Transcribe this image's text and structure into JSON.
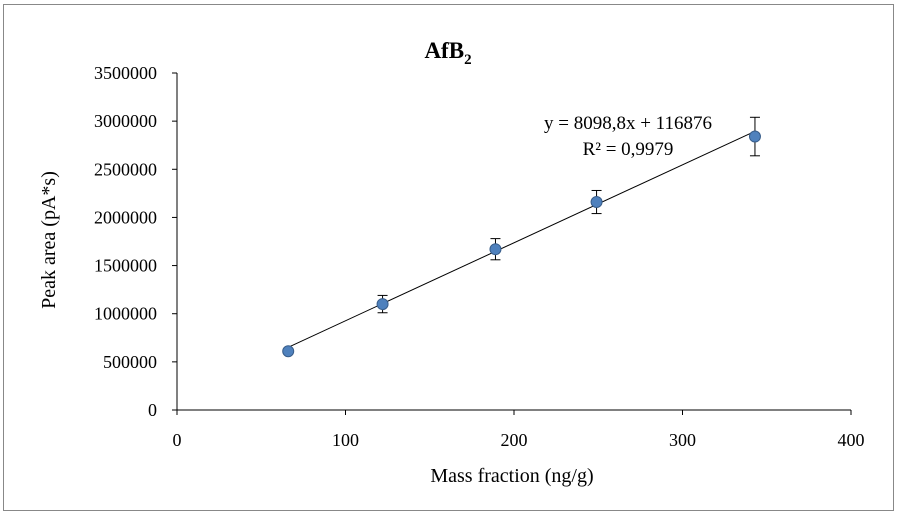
{
  "chart_data": {
    "type": "scatter",
    "title": "AfB",
    "title_subscript": "2",
    "xlabel": "Mass fraction (ng/g)",
    "ylabel": "Peak area (pA*s)",
    "xlim": [
      0,
      400
    ],
    "ylim": [
      0,
      3500000
    ],
    "x_ticks": [
      "0",
      "100",
      "200",
      "300",
      "400"
    ],
    "y_ticks": [
      "0",
      "500000",
      "1000000",
      "1500000",
      "2000000",
      "2500000",
      "3000000",
      "3500000"
    ],
    "grid": false,
    "legend": "none",
    "marker_color": "#4F81BD",
    "series": [
      {
        "x": [
          66,
          122,
          189,
          249,
          343
        ],
        "y": [
          610000,
          1100000,
          1670000,
          2160000,
          2840000
        ],
        "error": [
          0,
          90000,
          110000,
          120000,
          200000
        ]
      }
    ],
    "trendline": {
      "type": "linear",
      "slope": 8098.8,
      "intercept": 116876,
      "equation": "y = 8098,8x + 116876",
      "r2_label": "R² = 0,9979"
    }
  }
}
